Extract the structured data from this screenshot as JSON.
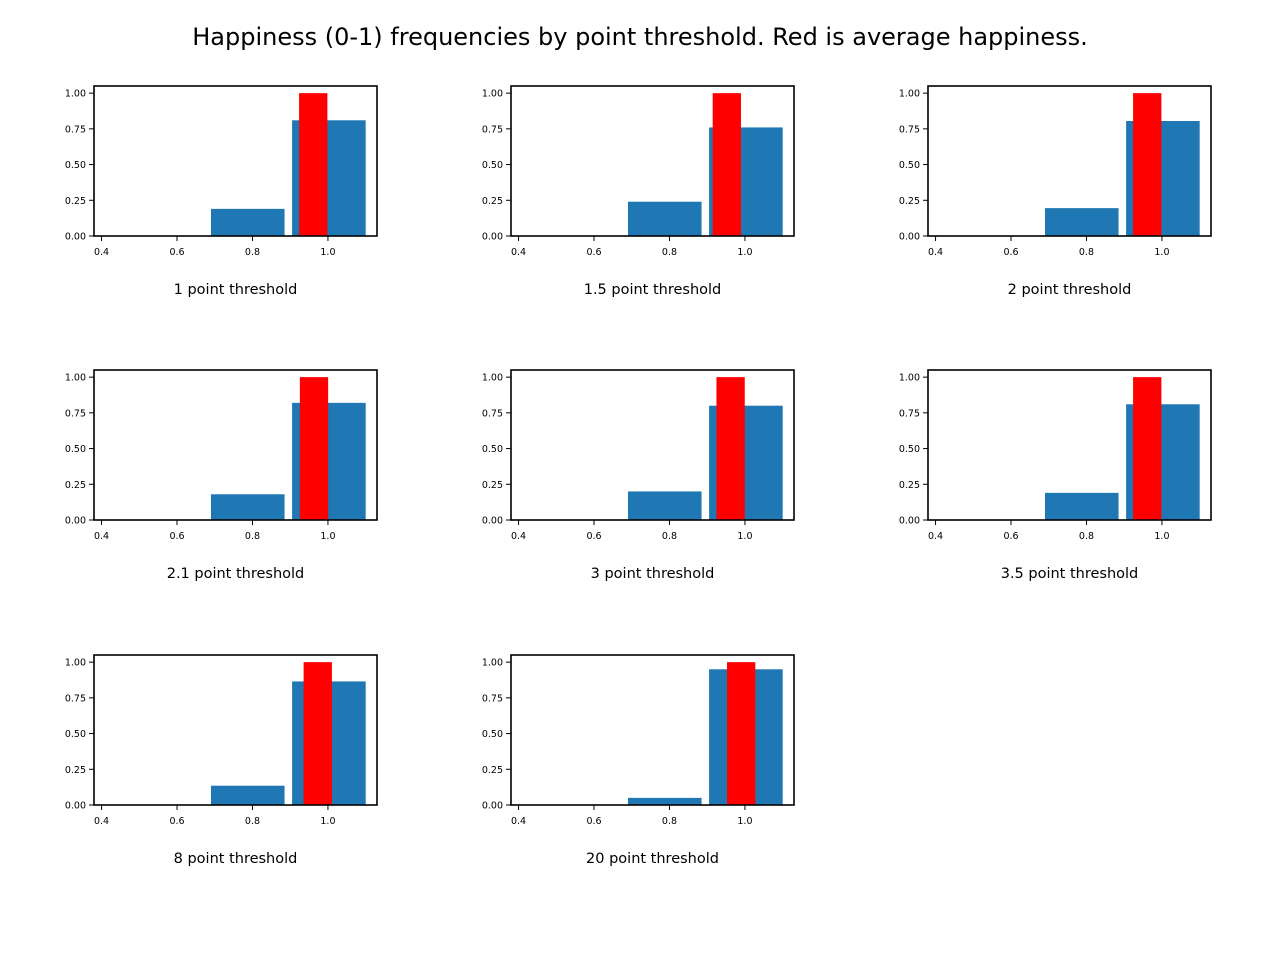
{
  "figure": {
    "title": "Happiness (0-1) frequencies by point threshold. Red is average happiness."
  },
  "colors": {
    "histogram": "#1f77b4",
    "average": "#ff0000",
    "axes": "#000000"
  },
  "chart_data": [
    {
      "type": "bar",
      "xlabel": "1 point threshold",
      "xlim": [
        0.38,
        1.13
      ],
      "ylim": [
        0,
        1.05
      ],
      "xticks": [
        "0.4",
        "0.6",
        "0.8",
        "1.0"
      ],
      "yticks": [
        "0.00",
        "0.25",
        "0.50",
        "0.75",
        "1.00"
      ],
      "histogram": [
        {
          "x0": 0.69,
          "x1": 0.885,
          "value": 0.19
        },
        {
          "x0": 0.905,
          "x1": 1.1,
          "value": 0.81
        }
      ],
      "average": {
        "value": 0.961,
        "height": 1.0
      }
    },
    {
      "type": "bar",
      "xlabel": "1.5 point threshold",
      "xlim": [
        0.38,
        1.13
      ],
      "ylim": [
        0,
        1.05
      ],
      "xticks": [
        "0.4",
        "0.6",
        "0.8",
        "1.0"
      ],
      "yticks": [
        "0.00",
        "0.25",
        "0.50",
        "0.75",
        "1.00"
      ],
      "histogram": [
        {
          "x0": 0.69,
          "x1": 0.885,
          "value": 0.24
        },
        {
          "x0": 0.905,
          "x1": 1.1,
          "value": 0.76
        }
      ],
      "average": {
        "value": 0.952,
        "height": 1.0
      }
    },
    {
      "type": "bar",
      "xlabel": "2 point threshold",
      "xlim": [
        0.38,
        1.13
      ],
      "ylim": [
        0,
        1.05
      ],
      "xticks": [
        "0.4",
        "0.6",
        "0.8",
        "1.0"
      ],
      "yticks": [
        "0.00",
        "0.25",
        "0.50",
        "0.75",
        "1.00"
      ],
      "histogram": [
        {
          "x0": 0.69,
          "x1": 0.885,
          "value": 0.195
        },
        {
          "x0": 0.905,
          "x1": 1.1,
          "value": 0.805
        }
      ],
      "average": {
        "value": 0.961,
        "height": 1.0
      }
    },
    {
      "type": "bar",
      "xlabel": "2.1 point threshold",
      "xlim": [
        0.38,
        1.13
      ],
      "ylim": [
        0,
        1.05
      ],
      "xticks": [
        "0.4",
        "0.6",
        "0.8",
        "1.0"
      ],
      "yticks": [
        "0.00",
        "0.25",
        "0.50",
        "0.75",
        "1.00"
      ],
      "histogram": [
        {
          "x0": 0.69,
          "x1": 0.885,
          "value": 0.18
        },
        {
          "x0": 0.905,
          "x1": 1.1,
          "value": 0.82
        }
      ],
      "average": {
        "value": 0.963,
        "height": 1.0
      }
    },
    {
      "type": "bar",
      "xlabel": "3 point threshold",
      "xlim": [
        0.38,
        1.13
      ],
      "ylim": [
        0,
        1.05
      ],
      "xticks": [
        "0.4",
        "0.6",
        "0.8",
        "1.0"
      ],
      "yticks": [
        "0.00",
        "0.25",
        "0.50",
        "0.75",
        "1.00"
      ],
      "histogram": [
        {
          "x0": 0.69,
          "x1": 0.885,
          "value": 0.2
        },
        {
          "x0": 0.905,
          "x1": 1.1,
          "value": 0.8
        }
      ],
      "average": {
        "value": 0.962,
        "height": 1.0
      }
    },
    {
      "type": "bar",
      "xlabel": "3.5 point threshold",
      "xlim": [
        0.38,
        1.13
      ],
      "ylim": [
        0,
        1.05
      ],
      "xticks": [
        "0.4",
        "0.6",
        "0.8",
        "1.0"
      ],
      "yticks": [
        "0.00",
        "0.25",
        "0.50",
        "0.75",
        "1.00"
      ],
      "histogram": [
        {
          "x0": 0.69,
          "x1": 0.885,
          "value": 0.19
        },
        {
          "x0": 0.905,
          "x1": 1.1,
          "value": 0.81
        }
      ],
      "average": {
        "value": 0.961,
        "height": 1.0
      }
    },
    {
      "type": "bar",
      "xlabel": "8 point threshold",
      "xlim": [
        0.38,
        1.13
      ],
      "ylim": [
        0,
        1.05
      ],
      "xticks": [
        "0.4",
        "0.6",
        "0.8",
        "1.0"
      ],
      "yticks": [
        "0.00",
        "0.25",
        "0.50",
        "0.75",
        "1.00"
      ],
      "histogram": [
        {
          "x0": 0.69,
          "x1": 0.885,
          "value": 0.135
        },
        {
          "x0": 0.905,
          "x1": 1.1,
          "value": 0.865
        }
      ],
      "average": {
        "value": 0.973,
        "height": 1.0
      }
    },
    {
      "type": "bar",
      "xlabel": "20 point threshold",
      "xlim": [
        0.38,
        1.13
      ],
      "ylim": [
        0,
        1.05
      ],
      "xticks": [
        "0.4",
        "0.6",
        "0.8",
        "1.0"
      ],
      "yticks": [
        "0.00",
        "0.25",
        "0.50",
        "0.75",
        "1.00"
      ],
      "histogram": [
        {
          "x0": 0.69,
          "x1": 0.885,
          "value": 0.05
        },
        {
          "x0": 0.905,
          "x1": 1.1,
          "value": 0.95
        }
      ],
      "average": {
        "value": 0.99,
        "height": 1.0
      }
    }
  ]
}
